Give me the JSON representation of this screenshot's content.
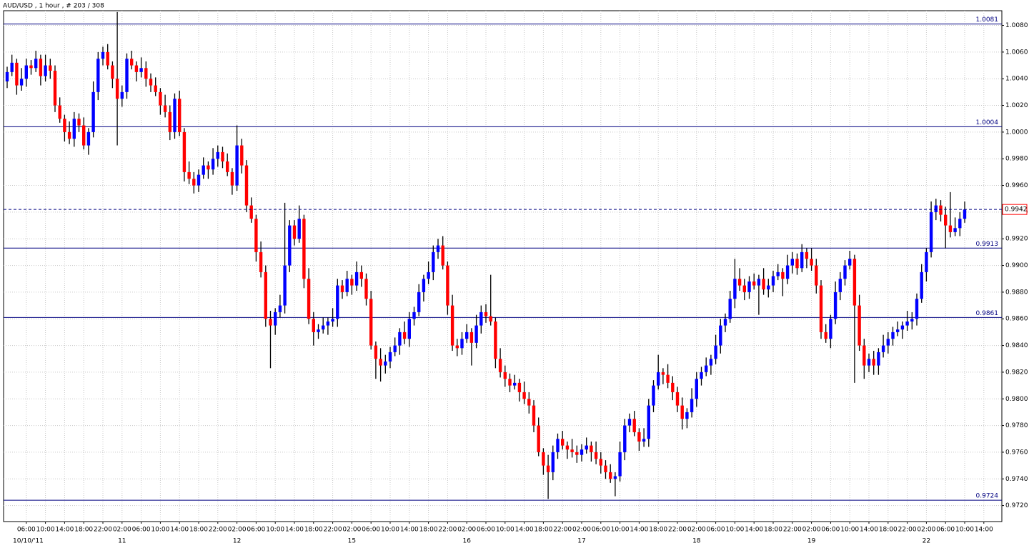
{
  "chart_data": {
    "type": "candlestick",
    "title": "AUD/USD , 1 hour , # 203 / 308",
    "ylim": [
      0.9708,
      1.0091
    ],
    "yticks": [
      {
        "value": 1.008,
        "label": "1.0080"
      },
      {
        "value": 1.006,
        "label": "1.0060"
      },
      {
        "value": 1.004,
        "label": "1.0040"
      },
      {
        "value": 1.002,
        "label": "1.0020"
      },
      {
        "value": 1,
        "label": "1.0000"
      },
      {
        "value": 0.998,
        "label": "0.9980"
      },
      {
        "value": 0.996,
        "label": "0.9960"
      },
      {
        "value": 0.994,
        "label": "0.9940"
      },
      {
        "value": 0.992,
        "label": "0.9920"
      },
      {
        "value": 0.99,
        "label": "0.9900"
      },
      {
        "value": 0.988,
        "label": "0.9880"
      },
      {
        "value": 0.986,
        "label": "0.9860"
      },
      {
        "value": 0.984,
        "label": "0.9840"
      },
      {
        "value": 0.982,
        "label": "0.9820"
      },
      {
        "value": 0.98,
        "label": "0.9800"
      },
      {
        "value": 0.978,
        "label": "0.9780"
      },
      {
        "value": 0.976,
        "label": "0.9760"
      },
      {
        "value": 0.974,
        "label": "0.9740"
      },
      {
        "value": 0.972,
        "label": "0.9720"
      }
    ],
    "grid": true,
    "up_color": "#0000ff",
    "down_color": "#ff0000",
    "wick_color": "#000000",
    "level_color": "#000080",
    "levels": [
      1.0081,
      1.0004,
      0.9913,
      0.9861,
      0.9724
    ],
    "current_price": 0.9942,
    "x_tick_labels": [
      "06:00",
      "10:00",
      "14:00",
      "18:00",
      "22:00",
      "02:00",
      "06:00",
      "10:00",
      "14:00",
      "18:00",
      "22:00",
      "02:00",
      "06:00",
      "10:00",
      "14:00",
      "18:00",
      "22:00",
      "02:00",
      "06:00",
      "10:00",
      "14:00",
      "18:00",
      "22:00",
      "02:00",
      "06:00",
      "10:00",
      "14:00",
      "18:00",
      "22:00",
      "02:00",
      "06:00",
      "10:00",
      "14:00",
      "18:00",
      "22:00",
      "02:00",
      "06:00",
      "10:00",
      "14:00",
      "18:00",
      "22:00",
      "02:00",
      "06:00",
      "10:00",
      "14:00",
      "18:00",
      "22:00",
      "02:00",
      "06:00",
      "10:00",
      "14:00"
    ],
    "date_labels": [
      "10/10/'11",
      "11",
      "12",
      "15",
      "16",
      "17",
      "18",
      "19",
      "22"
    ],
    "candles": [
      [
        1.0038,
        1.0049,
        1.0033,
        1.0045
      ],
      [
        1.0045,
        1.0058,
        1.0042,
        1.0052
      ],
      [
        1.0052,
        1.0055,
        1.0028,
        1.0035
      ],
      [
        1.0035,
        1.0048,
        1.0031,
        1.004
      ],
      [
        1.004,
        1.0055,
        1.0034,
        1.005
      ],
      [
        1.005,
        1.0054,
        1.0043,
        1.0048
      ],
      [
        1.0048,
        1.0061,
        1.0045,
        1.0055
      ],
      [
        1.0055,
        1.0058,
        1.0035,
        1.0042
      ],
      [
        1.0042,
        1.0058,
        1.0038,
        1.005
      ],
      [
        1.005,
        1.0055,
        1.004,
        1.0046
      ],
      [
        1.0046,
        1.005,
        1.0015,
        1.002
      ],
      [
        1.002,
        1.0026,
        1.0007,
        1.001
      ],
      [
        1.001,
        1.0013,
        0.9993,
        1.0
      ],
      [
        1.0,
        1.0008,
        0.9991,
        0.9995
      ],
      [
        0.9995,
        1.0015,
        0.9989,
        1.001
      ],
      [
        1.001,
        1.0014,
        1.0,
        1.0005
      ],
      [
        1.0005,
        1.0011,
        0.9987,
        0.999
      ],
      [
        0.999,
        1.0003,
        0.9983,
        1.0
      ],
      [
        1.0,
        1.0038,
        0.9996,
        1.003
      ],
      [
        1.003,
        1.006,
        1.0024,
        1.0055
      ],
      [
        1.0055,
        1.0064,
        1.005,
        1.006
      ],
      [
        1.006,
        1.0066,
        1.0047,
        1.005
      ],
      [
        1.005,
        1.0053,
        1.0033,
        1.004
      ],
      [
        1.004,
        1.009,
        0.999,
        1.0025
      ],
      [
        1.0025,
        1.0035,
        1.0019,
        1.003
      ],
      [
        1.003,
        1.0059,
        1.0025,
        1.0055
      ],
      [
        1.0055,
        1.0061,
        1.0047,
        1.005
      ],
      [
        1.005,
        1.0053,
        1.0038,
        1.0045
      ],
      [
        1.0045,
        1.0056,
        1.0041,
        1.0048
      ],
      [
        1.0048,
        1.0053,
        1.0034,
        1.004
      ],
      [
        1.004,
        1.0044,
        1.003,
        1.0035
      ],
      [
        1.0035,
        1.0041,
        1.0027,
        1.003
      ],
      [
        1.003,
        1.0033,
        1.0013,
        1.002
      ],
      [
        1.002,
        1.0028,
        1.0011,
        1.0015
      ],
      [
        1.0015,
        1.002,
        0.9994,
        1.0
      ],
      [
        1.0,
        1.0029,
        0.9995,
        1.0025
      ],
      [
        1.0025,
        1.0031,
        0.9997,
        1.0
      ],
      [
        1.0,
        1.0003,
        0.9963,
        0.997
      ],
      [
        0.997,
        0.9978,
        0.9961,
        0.9965
      ],
      [
        0.9965,
        0.997,
        0.9954,
        0.996
      ],
      [
        0.996,
        0.9972,
        0.9955,
        0.9968
      ],
      [
        0.9968,
        0.9981,
        0.9965,
        0.9975
      ],
      [
        0.9975,
        0.9978,
        0.9965,
        0.9972
      ],
      [
        0.9972,
        0.9988,
        0.9968,
        0.998
      ],
      [
        0.998,
        0.999,
        0.9974,
        0.9985
      ],
      [
        0.9985,
        0.9989,
        0.9973,
        0.9978
      ],
      [
        0.9978,
        0.9984,
        0.9967,
        0.997
      ],
      [
        0.997,
        0.9973,
        0.9953,
        0.996
      ],
      [
        0.996,
        1.0005,
        0.9956,
        0.999
      ],
      [
        0.999,
        0.9995,
        0.9969,
        0.9975
      ],
      [
        0.9975,
        0.9979,
        0.994,
        0.9945
      ],
      [
        0.9945,
        0.9951,
        0.9932,
        0.9935
      ],
      [
        0.9935,
        0.9938,
        0.9903,
        0.991
      ],
      [
        0.991,
        0.9918,
        0.9891,
        0.9895
      ],
      [
        0.9895,
        0.99,
        0.9854,
        0.986
      ],
      [
        0.986,
        0.9866,
        0.9823,
        0.9855
      ],
      [
        0.9855,
        0.9868,
        0.9848,
        0.9865
      ],
      [
        0.9865,
        0.9878,
        0.9861,
        0.987
      ],
      [
        0.987,
        0.9947,
        0.9864,
        0.99
      ],
      [
        0.99,
        0.9934,
        0.9895,
        0.993
      ],
      [
        0.993,
        0.9934,
        0.9915,
        0.992
      ],
      [
        0.992,
        0.9945,
        0.9917,
        0.9935
      ],
      [
        0.9935,
        0.9938,
        0.9883,
        0.989
      ],
      [
        0.989,
        0.9898,
        0.9856,
        0.986
      ],
      [
        0.986,
        0.9865,
        0.984,
        0.985
      ],
      [
        0.985,
        0.9856,
        0.9845,
        0.9852
      ],
      [
        0.9852,
        0.9861,
        0.9849,
        0.9855
      ],
      [
        0.9855,
        0.9861,
        0.9848,
        0.9858
      ],
      [
        0.9858,
        0.9868,
        0.9854,
        0.986
      ],
      [
        0.986,
        0.989,
        0.9854,
        0.9885
      ],
      [
        0.9885,
        0.9889,
        0.9875,
        0.988
      ],
      [
        0.988,
        0.9896,
        0.9877,
        0.989
      ],
      [
        0.989,
        0.9893,
        0.9878,
        0.9885
      ],
      [
        0.9885,
        0.9903,
        0.9881,
        0.9895
      ],
      [
        0.9895,
        0.99,
        0.9884,
        0.989
      ],
      [
        0.989,
        0.9894,
        0.987,
        0.9875
      ],
      [
        0.9875,
        0.9881,
        0.9837,
        0.984
      ],
      [
        0.984,
        0.9843,
        0.9815,
        0.983
      ],
      [
        0.983,
        0.9838,
        0.9813,
        0.9825
      ],
      [
        0.9825,
        0.9833,
        0.9819,
        0.9828
      ],
      [
        0.9828,
        0.9839,
        0.9823,
        0.9835
      ],
      [
        0.9835,
        0.9846,
        0.9832,
        0.984
      ],
      [
        0.984,
        0.9853,
        0.9833,
        0.985
      ],
      [
        0.985,
        0.9858,
        0.9841,
        0.9845
      ],
      [
        0.9845,
        0.9865,
        0.9839,
        0.986
      ],
      [
        0.986,
        0.9869,
        0.9855,
        0.9865
      ],
      [
        0.9865,
        0.9886,
        0.9862,
        0.988
      ],
      [
        0.988,
        0.9893,
        0.9873,
        0.989
      ],
      [
        0.989,
        0.9903,
        0.9886,
        0.9895
      ],
      [
        0.9895,
        0.9915,
        0.9889,
        0.991
      ],
      [
        0.991,
        0.992,
        0.9905,
        0.9915
      ],
      [
        0.9915,
        0.9922,
        0.9897,
        0.99
      ],
      [
        0.99,
        0.9903,
        0.9863,
        0.987
      ],
      [
        0.987,
        0.9878,
        0.9836,
        0.984
      ],
      [
        0.984,
        0.9845,
        0.9832,
        0.9838
      ],
      [
        0.9838,
        0.985,
        0.9833,
        0.9845
      ],
      [
        0.9845,
        0.9856,
        0.9842,
        0.985
      ],
      [
        0.985,
        0.9853,
        0.9825,
        0.9842
      ],
      [
        0.9842,
        0.9863,
        0.9838,
        0.9855
      ],
      [
        0.9855,
        0.987,
        0.9849,
        0.9865
      ],
      [
        0.9865,
        0.9871,
        0.9857,
        0.9862
      ],
      [
        0.9862,
        0.9893,
        0.9855,
        0.9858
      ],
      [
        0.9858,
        0.9861,
        0.9823,
        0.983
      ],
      [
        0.983,
        0.9838,
        0.9816,
        0.982
      ],
      [
        0.982,
        0.9825,
        0.9809,
        0.9815
      ],
      [
        0.9815,
        0.9819,
        0.9805,
        0.981
      ],
      [
        0.981,
        0.9818,
        0.9807,
        0.9812
      ],
      [
        0.9812,
        0.9815,
        0.9798,
        0.9805
      ],
      [
        0.9805,
        0.9813,
        0.9796,
        0.98
      ],
      [
        0.98,
        0.9805,
        0.9789,
        0.9795
      ],
      [
        0.9795,
        0.9799,
        0.9775,
        0.978
      ],
      [
        0.978,
        0.9786,
        0.9757,
        0.976
      ],
      [
        0.976,
        0.9763,
        0.9743,
        0.975
      ],
      [
        0.975,
        0.9758,
        0.9725,
        0.9745
      ],
      [
        0.9745,
        0.9765,
        0.9739,
        0.976
      ],
      [
        0.976,
        0.9774,
        0.9755,
        0.977
      ],
      [
        0.977,
        0.9776,
        0.9762,
        0.9765
      ],
      [
        0.9765,
        0.9768,
        0.9755,
        0.9762
      ],
      [
        0.9762,
        0.977,
        0.9756,
        0.976
      ],
      [
        0.976,
        0.9765,
        0.9752,
        0.9758
      ],
      [
        0.9758,
        0.9766,
        0.9753,
        0.9762
      ],
      [
        0.9762,
        0.9771,
        0.9759,
        0.9765
      ],
      [
        0.9765,
        0.9768,
        0.9753,
        0.976
      ],
      [
        0.976,
        0.9768,
        0.9751,
        0.9755
      ],
      [
        0.9755,
        0.976,
        0.9744,
        0.975
      ],
      [
        0.975,
        0.9754,
        0.974,
        0.9745
      ],
      [
        0.9745,
        0.9751,
        0.9737,
        0.974
      ],
      [
        0.974,
        0.9745,
        0.9727,
        0.9742
      ],
      [
        0.9742,
        0.9768,
        0.9738,
        0.976
      ],
      [
        0.976,
        0.9785,
        0.9754,
        0.978
      ],
      [
        0.978,
        0.9789,
        0.9775,
        0.9785
      ],
      [
        0.9785,
        0.9791,
        0.9772,
        0.9775
      ],
      [
        0.9775,
        0.9778,
        0.9761,
        0.9768
      ],
      [
        0.9768,
        0.9778,
        0.9764,
        0.977
      ],
      [
        0.977,
        0.98,
        0.9764,
        0.9795
      ],
      [
        0.9795,
        0.9814,
        0.979,
        0.981
      ],
      [
        0.981,
        0.9833,
        0.9807,
        0.982
      ],
      [
        0.982,
        0.9823,
        0.9811,
        0.9818
      ],
      [
        0.9818,
        0.9826,
        0.9808,
        0.9812
      ],
      [
        0.9812,
        0.9817,
        0.9799,
        0.9805
      ],
      [
        0.9805,
        0.9809,
        0.979,
        0.9795
      ],
      [
        0.9795,
        0.9801,
        0.9777,
        0.9785
      ],
      [
        0.9785,
        0.9793,
        0.9778,
        0.979
      ],
      [
        0.979,
        0.9808,
        0.9786,
        0.98
      ],
      [
        0.98,
        0.982,
        0.9794,
        0.9815
      ],
      [
        0.9815,
        0.9824,
        0.981,
        0.982
      ],
      [
        0.982,
        0.9831,
        0.9817,
        0.9825
      ],
      [
        0.9825,
        0.9833,
        0.9818,
        0.983
      ],
      [
        0.983,
        0.9848,
        0.9826,
        0.984
      ],
      [
        0.984,
        0.986,
        0.9834,
        0.9855
      ],
      [
        0.9855,
        0.9864,
        0.985,
        0.986
      ],
      [
        0.986,
        0.9881,
        0.9857,
        0.9875
      ],
      [
        0.9875,
        0.9905,
        0.9868,
        0.989
      ],
      [
        0.989,
        0.9898,
        0.9881,
        0.9885
      ],
      [
        0.9885,
        0.989,
        0.9874,
        0.988
      ],
      [
        0.988,
        0.9892,
        0.9875,
        0.9888
      ],
      [
        0.9888,
        0.9894,
        0.9882,
        0.9885
      ],
      [
        0.9885,
        0.9893,
        0.9863,
        0.989
      ],
      [
        0.989,
        0.9898,
        0.9878,
        0.9882
      ],
      [
        0.9882,
        0.989,
        0.9876,
        0.9885
      ],
      [
        0.9885,
        0.9896,
        0.988,
        0.9892
      ],
      [
        0.9892,
        0.9901,
        0.9889,
        0.9895
      ],
      [
        0.9895,
        0.9898,
        0.9877,
        0.989
      ],
      [
        0.989,
        0.9908,
        0.9886,
        0.99
      ],
      [
        0.99,
        0.991,
        0.9894,
        0.9905
      ],
      [
        0.9905,
        0.9909,
        0.9893,
        0.9898
      ],
      [
        0.9898,
        0.9916,
        0.9895,
        0.991
      ],
      [
        0.991,
        0.9913,
        0.9898,
        0.9905
      ],
      [
        0.9905,
        0.9913,
        0.9896,
        0.99
      ],
      [
        0.99,
        0.9905,
        0.9879,
        0.9885
      ],
      [
        0.9885,
        0.9889,
        0.9845,
        0.985
      ],
      [
        0.985,
        0.9856,
        0.9842,
        0.9845
      ],
      [
        0.9845,
        0.9863,
        0.9838,
        0.986
      ],
      [
        0.986,
        0.9888,
        0.9856,
        0.988
      ],
      [
        0.988,
        0.9895,
        0.9874,
        0.989
      ],
      [
        0.989,
        0.9904,
        0.9885,
        0.99
      ],
      [
        0.99,
        0.9911,
        0.9897,
        0.9905
      ],
      [
        0.9905,
        0.9908,
        0.9812,
        0.987
      ],
      [
        0.987,
        0.9878,
        0.9836,
        0.984
      ],
      [
        0.984,
        0.9845,
        0.9815,
        0.9825
      ],
      [
        0.9825,
        0.9834,
        0.982,
        0.983
      ],
      [
        0.983,
        0.9836,
        0.9818,
        0.9825
      ],
      [
        0.9825,
        0.9838,
        0.9818,
        0.9835
      ],
      [
        0.9835,
        0.9848,
        0.9831,
        0.984
      ],
      [
        0.984,
        0.985,
        0.9834,
        0.9845
      ],
      [
        0.9845,
        0.9854,
        0.984,
        0.985
      ],
      [
        0.985,
        0.9858,
        0.9847,
        0.9852
      ],
      [
        0.9852,
        0.9858,
        0.9845,
        0.9855
      ],
      [
        0.9855,
        0.9866,
        0.9851,
        0.9858
      ],
      [
        0.9858,
        0.9865,
        0.9852,
        0.986
      ],
      [
        0.986,
        0.9879,
        0.9855,
        0.9875
      ],
      [
        0.9875,
        0.9901,
        0.9872,
        0.9895
      ],
      [
        0.9895,
        0.9913,
        0.9888,
        0.991
      ],
      [
        0.991,
        0.9948,
        0.9906,
        0.994
      ],
      [
        0.994,
        0.995,
        0.9934,
        0.9945
      ],
      [
        0.9945,
        0.9949,
        0.9933,
        0.9938
      ],
      [
        0.9938,
        0.9944,
        0.9913,
        0.993
      ],
      [
        0.993,
        0.9955,
        0.9921,
        0.9925
      ],
      [
        0.9925,
        0.9936,
        0.9922,
        0.9928
      ],
      [
        0.9928,
        0.994,
        0.9922,
        0.9935
      ],
      [
        0.9935,
        0.9948,
        0.9932,
        0.9942
      ]
    ]
  }
}
